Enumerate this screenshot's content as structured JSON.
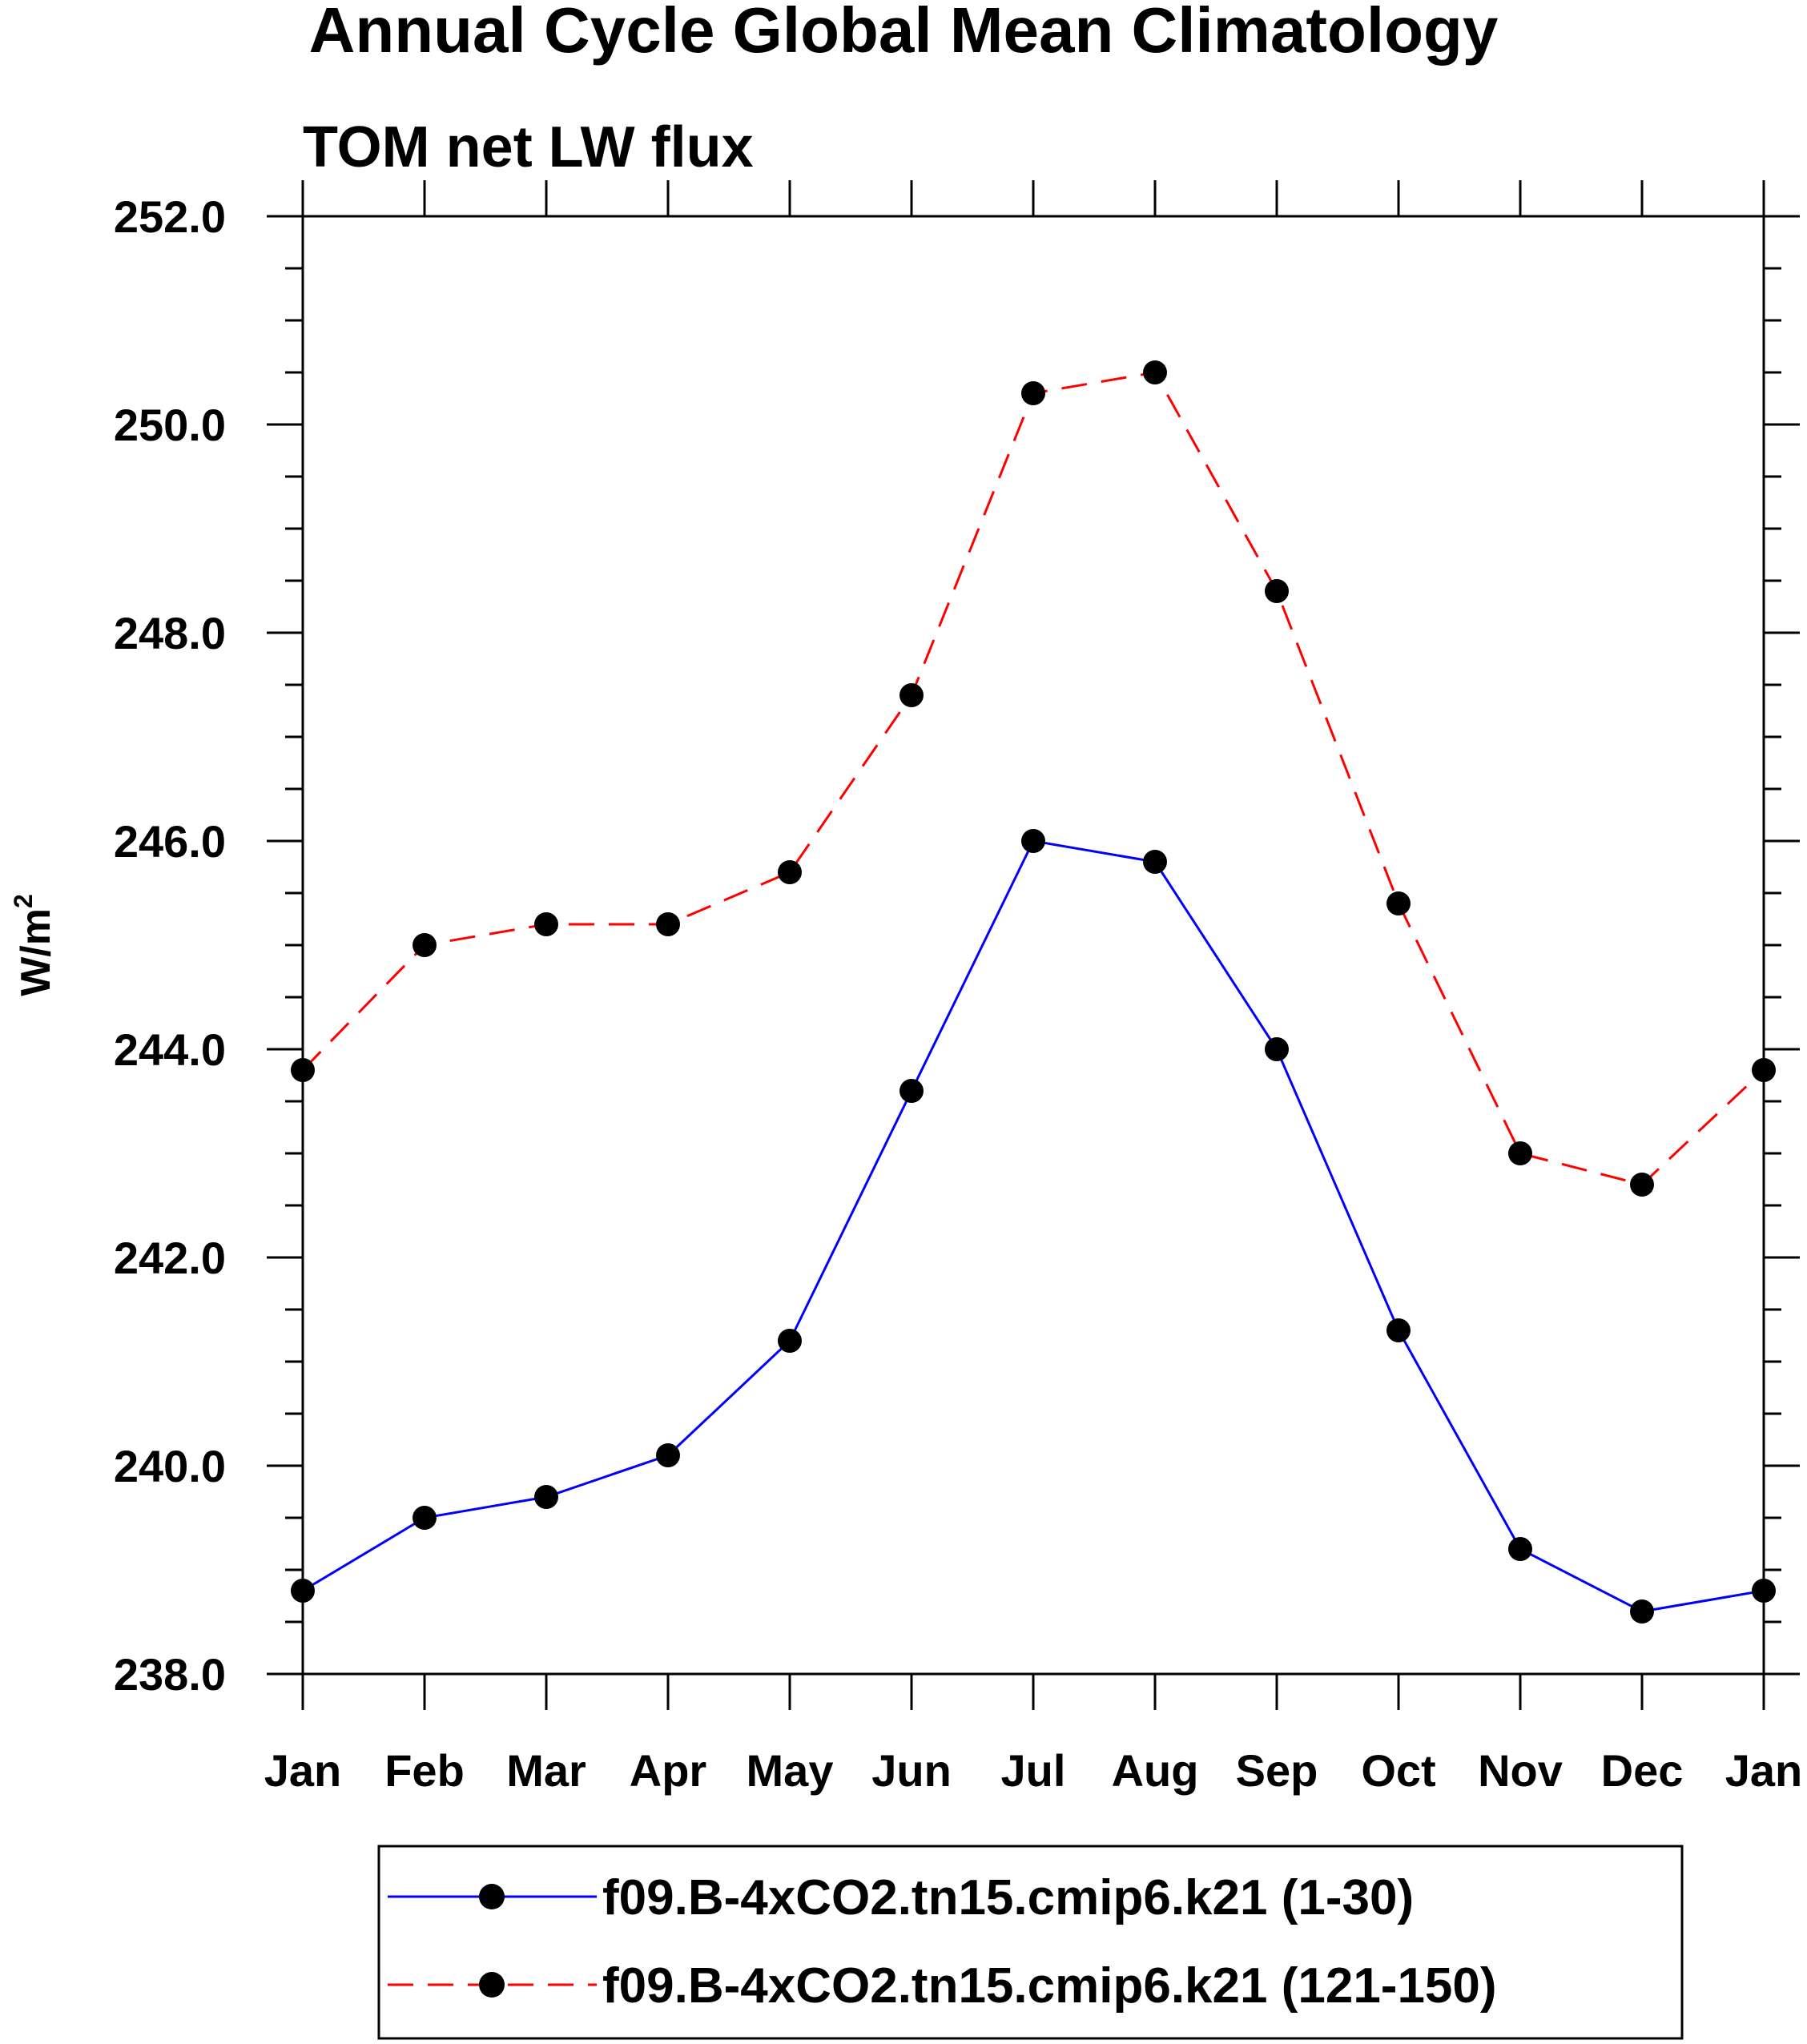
{
  "chart_data": {
    "type": "line",
    "title": "Annual Cycle Global Mean Climatology",
    "subtitle": "TOM net LW flux",
    "ylabel_base": "W/m",
    "ylabel_sup": "2",
    "xlabel": "",
    "categories": [
      "Jan",
      "Feb",
      "Mar",
      "Apr",
      "May",
      "Jun",
      "Jul",
      "Aug",
      "Sep",
      "Oct",
      "Nov",
      "Dec",
      "Jan"
    ],
    "ylim": [
      238.0,
      252.0
    ],
    "yticks": [
      "238.0",
      "240.0",
      "242.0",
      "244.0",
      "246.0",
      "248.0",
      "250.0",
      "252.0"
    ],
    "grid": false,
    "legend_position": "bottom",
    "series": [
      {
        "name": "f09.B-4xCO2.tn15.cmip6.k21 (1-30)",
        "color": "#0000ff",
        "line_style": "solid",
        "marker_color": "#000000",
        "values": [
          238.8,
          239.5,
          239.7,
          240.1,
          241.2,
          243.6,
          246.0,
          245.8,
          244.0,
          241.3,
          239.2,
          238.6,
          238.8
        ]
      },
      {
        "name": "f09.B-4xCO2.tn15.cmip6.k21 (121-150)",
        "color": "#ff0000",
        "line_style": "dashed",
        "marker_color": "#000000",
        "values": [
          243.8,
          245.0,
          245.2,
          245.2,
          245.7,
          247.4,
          250.3,
          250.5,
          248.4,
          245.4,
          243.0,
          242.7,
          243.8
        ]
      }
    ]
  }
}
